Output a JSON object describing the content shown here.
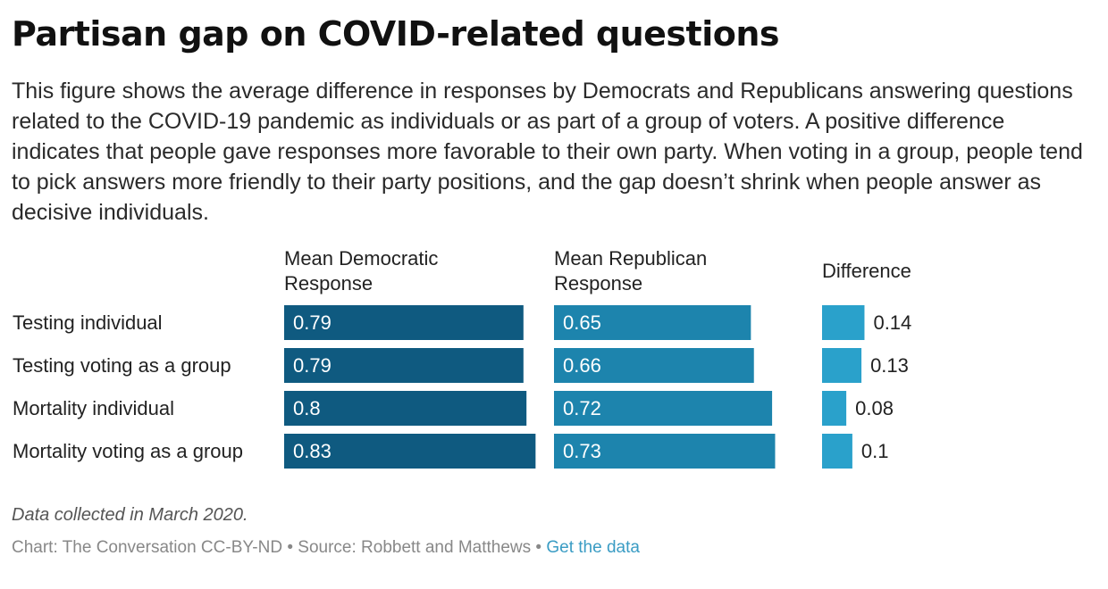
{
  "chart_data": {
    "type": "table",
    "title": "Partisan gap on COVID-related questions",
    "subtitle": "This figure shows the average difference in responses by Democrats and Republicans answering questions related to the COVID-19 pandemic as individuals or as part of a group of voters. A positive difference indicates that people gave responses more favorable to their own party. When voting in a group, people tend to pick answers more friendly to their party positions, and the gap doesn’t shrink when people answer as decisive individuals.",
    "categories": [
      "Testing individual",
      "Testing voting as a group",
      "Mortality individual",
      "Mortality voting as a group"
    ],
    "columns": [
      {
        "name_lines": [
          "Mean Democratic",
          "Response"
        ],
        "values": [
          0.79,
          0.79,
          0.8,
          0.83
        ],
        "labels": [
          "0.79",
          "0.79",
          "0.8",
          "0.83"
        ],
        "color": "#0f5a80"
      },
      {
        "name_lines": [
          "Mean Republican",
          "Response"
        ],
        "values": [
          0.65,
          0.66,
          0.72,
          0.73
        ],
        "labels": [
          "0.65",
          "0.66",
          "0.72",
          "0.73"
        ],
        "color": "#1d84ad"
      },
      {
        "name_lines": [
          "Difference"
        ],
        "values": [
          0.14,
          0.13,
          0.08,
          0.1
        ],
        "labels": [
          "0.14",
          "0.13",
          "0.08",
          "0.1"
        ],
        "color": "#2aa1cb"
      }
    ]
  },
  "footer": {
    "note": "Data collected in March 2020.",
    "credit": "Chart: The Conversation CC-BY-ND • Source: Robbett and Matthews • ",
    "link": "Get the data"
  }
}
